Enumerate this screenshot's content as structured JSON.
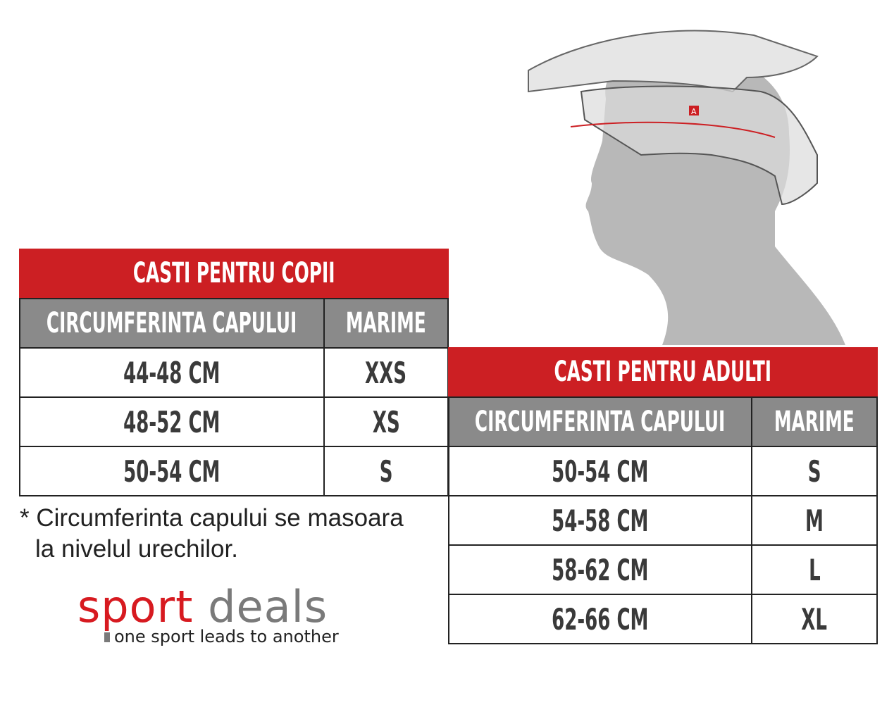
{
  "kids": {
    "title": "CASTI PENTRU COPII",
    "headers": [
      "CIRCUMFERINTA CAPULUI",
      "MARIME"
    ],
    "rows": [
      [
        "44-48 CM",
        "XXS"
      ],
      [
        "48-52 CM",
        "XS"
      ],
      [
        "50-54 CM",
        "S"
      ]
    ]
  },
  "adults": {
    "title": "CASTI PENTRU ADULTI",
    "headers": [
      "CIRCUMFERINTA CAPULUI",
      "MARIME"
    ],
    "rows": [
      [
        "50-54 CM",
        "S"
      ],
      [
        "54-58 CM",
        "M"
      ],
      [
        "58-62 CM",
        "L"
      ],
      [
        "62-66 CM",
        "XL"
      ]
    ]
  },
  "note": {
    "line1": "* Circumferinta capului se masoara",
    "line2": "la nivelul urechilor."
  },
  "logo": {
    "word1": "sport",
    "word2": "deals",
    "tagline": "one sport leads to another"
  },
  "colors": {
    "title_red": "#cc1f23",
    "header_gray": "#8a8a8a",
    "logo_red": "#d71a20",
    "logo_gray": "#7a7a7a"
  },
  "illustration": {
    "marker": "A"
  }
}
